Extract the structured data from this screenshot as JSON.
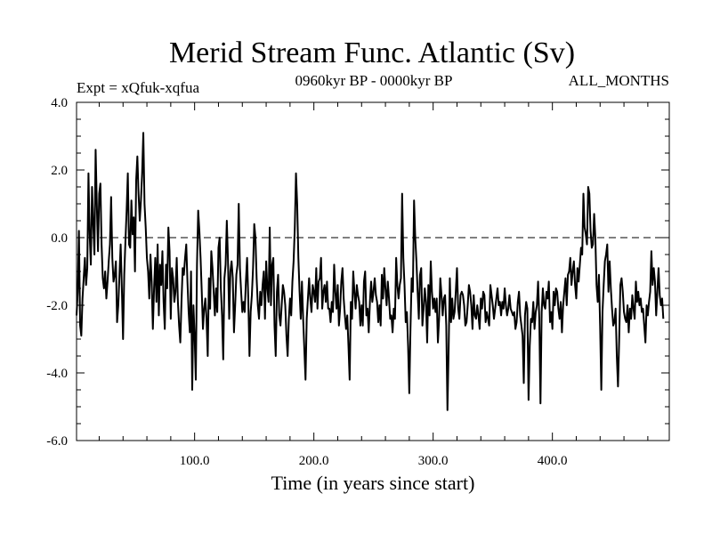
{
  "chart_data": {
    "type": "line",
    "title": "Merid Stream Func. Atlantic (Sv)",
    "subtitle_left": "Expt = xQfuk-xqfua",
    "subtitle_center": "0960kyr BP - 0000kyr BP",
    "subtitle_right": "ALL_MONTHS",
    "xlabel": "Time (in years since start)",
    "ylabel": "",
    "xlim": [
      1,
      498
    ],
    "ylim": [
      -6.0,
      4.0
    ],
    "x_ticks": [
      {
        "value": 100,
        "label": "100.0"
      },
      {
        "value": 200,
        "label": "200.0"
      },
      {
        "value": 300,
        "label": "300.0"
      },
      {
        "value": 400,
        "label": "400.0"
      }
    ],
    "y_ticks": [
      {
        "value": 4,
        "label": "4.0"
      },
      {
        "value": 2,
        "label": "2.0"
      },
      {
        "value": 0,
        "label": "0.0"
      },
      {
        "value": -2,
        "label": "-2.0"
      },
      {
        "value": -4,
        "label": "-4.0"
      },
      {
        "value": -6,
        "label": "-6.0"
      }
    ],
    "reference_line": 0.0,
    "x_start": 1,
    "x_step": 1,
    "series": [
      {
        "name": "xQfuk-xqfua",
        "values": [
          -2.3,
          -1.6,
          0.2,
          -2.6,
          -2.9,
          -1.8,
          -1.2,
          -0.6,
          -1.4,
          -0.9,
          1.9,
          0.1,
          -0.8,
          1.5,
          0.4,
          -0.5,
          2.6,
          1.0,
          -0.4,
          1.3,
          1.6,
          -0.2,
          -1.2,
          -1.5,
          -1.0,
          -1.8,
          -1.3,
          -0.7,
          -0.2,
          1.2,
          -0.6,
          -1.3,
          -1.1,
          -0.7,
          -2.5,
          -2.0,
          -1.1,
          -0.2,
          -1.5,
          -3.0,
          -1.1,
          -0.1,
          0.8,
          1.9,
          -0.2,
          -0.3,
          1.1,
          0.1,
          0.6,
          -1.0,
          1.7,
          2.4,
          1.3,
          0.5,
          1.1,
          1.9,
          3.1,
          1.0,
          0.3,
          -0.6,
          -1.0,
          -1.8,
          -0.5,
          -1.3,
          -2.7,
          -1.5,
          -0.6,
          -1.9,
          -0.2,
          -2.3,
          -0.8,
          -1.4,
          -0.4,
          -1.9,
          -2.7,
          -0.8,
          -1.5,
          0.3,
          -0.4,
          -2.4,
          -0.9,
          -1.2,
          -1.9,
          -1.6,
          -0.6,
          -1.9,
          -2.6,
          -3.1,
          -1.9,
          -0.9,
          -1.1,
          -0.6,
          -0.2,
          -1.3,
          -2.2,
          -2.8,
          -1.0,
          -4.5,
          -2.0,
          -2.9,
          -4.2,
          -0.8,
          0.8,
          0.2,
          -0.6,
          -1.6,
          -2.7,
          -2.1,
          -1.8,
          -2.4,
          -3.5,
          -1.2,
          -2.1,
          -0.4,
          -0.9,
          -1.6,
          -2.3,
          -1.5,
          -2.2,
          -0.3,
          0.0,
          -1.5,
          -2.3,
          -3.6,
          -1.2,
          -0.8,
          0.5,
          -0.7,
          -2.4,
          -1.0,
          -0.7,
          -1.2,
          -2.8,
          -2.0,
          -1.1,
          -0.8,
          1.0,
          -0.9,
          -1.6,
          -2.2,
          -1.9,
          -2.2,
          -1.3,
          -0.6,
          -1.8,
          -3.5,
          -2.2,
          -1.7,
          -0.9,
          0.4,
          0.0,
          -1.2,
          -2.0,
          -2.4,
          -1.6,
          -2.0,
          -1.4,
          -1.0,
          -2.4,
          -0.7,
          -1.5,
          -1.9,
          0.3,
          -2.0,
          -0.8,
          -0.6,
          -2.6,
          -3.5,
          -1.6,
          -1.1,
          -2.3,
          -2.6,
          -2.0,
          -1.4,
          -1.6,
          -2.0,
          -2.9,
          -3.5,
          -2.4,
          -1.8,
          -2.3,
          -1.3,
          -0.7,
          0.3,
          1.9,
          1.0,
          -0.6,
          -1.6,
          -2.4,
          -1.3,
          -2.4,
          -3.3,
          -4.2,
          -2.4,
          -1.8,
          -1.2,
          -1.8,
          -2.2,
          -1.4,
          -1.6,
          -1.9,
          -0.9,
          -2.1,
          -1.3,
          -1.2,
          -0.6,
          -2.1,
          -1.6,
          -1.4,
          -1.9,
          -1.3,
          -2.1,
          -2.1,
          -2.5,
          -1.9,
          -2.2,
          -0.8,
          -1.6,
          -2.1,
          -1.4,
          -2.6,
          -2.1,
          -1.3,
          -0.9,
          -1.8,
          -2.3,
          -2.7,
          -2.3,
          -3.2,
          -4.2,
          -1.9,
          -2.4,
          -1.0,
          -1.6,
          -2.1,
          -1.4,
          -1.7,
          -1.9,
          -2.6,
          -2.0,
          -2.6,
          -1.3,
          -1.0,
          -2.3,
          -2.1,
          -2.8,
          -1.9,
          -1.3,
          -1.9,
          -1.6,
          -1.2,
          -1.7,
          -1.9,
          -2.5,
          -2.0,
          -2.6,
          -1.1,
          -1.8,
          -0.9,
          -1.5,
          -2.0,
          -1.3,
          -1.8,
          -2.4,
          -2.3,
          -2.8,
          -2.1,
          -2.4,
          -0.6,
          -1.4,
          -1.8,
          -1.4,
          -1.2,
          1.3,
          -0.6,
          -1.4,
          -2.5,
          -2.2,
          -3.2,
          -4.6,
          -2.7,
          -1.2,
          -1.6,
          1.1,
          0.0,
          -0.7,
          -1.6,
          -2.4,
          -1.1,
          -0.9,
          -2.6,
          -2.1,
          -1.5,
          -1.9,
          -3.1,
          -1.4,
          -2.3,
          -0.7,
          -1.6,
          -2.1,
          -1.8,
          -2.2,
          -1.8,
          -3.1,
          -2.4,
          -1.2,
          -1.7,
          -2.3,
          -1.8,
          -1.7,
          -2.6,
          -5.1,
          -3.3,
          -1.2,
          -2.5,
          -1.8,
          -2.4,
          -2.2,
          -1.6,
          -0.9,
          -2.1,
          -2.4,
          -1.7,
          -1.6,
          -1.7,
          -2.0,
          -2.6,
          -2.5,
          -2.0,
          -1.4,
          -1.6,
          -2.0,
          -2.7,
          -1.7,
          -2.3,
          -2.4,
          -2.0,
          -2.3,
          -2.7,
          -1.8,
          -2.1,
          -1.6,
          -1.7,
          -2.5,
          -2.2,
          -2.4,
          -2.6,
          -1.4,
          -1.7,
          -2.0,
          -2.4,
          -2.1,
          -1.8,
          -1.5,
          -2.0,
          -1.9,
          -2.3,
          -1.9,
          -2.1,
          -1.5,
          -2.0,
          -2.3,
          -2.1,
          -1.7,
          -2.1,
          -2.2,
          -2.3,
          -2.2,
          -2.7,
          -2.5,
          -1.9,
          -1.6,
          -2.3,
          -2.6,
          -2.9,
          -4.3,
          -2.3,
          -1.9,
          -2.1,
          -4.8,
          -3.2,
          -2.4,
          -2.5,
          -1.9,
          -2.7,
          -2.2,
          -2.0,
          -1.3,
          -2.4,
          -4.9,
          -2.2,
          -1.5,
          -2.0,
          -2.1,
          -1.6,
          -1.8,
          -1.3,
          -2.5,
          -2.2,
          -2.7,
          -1.6,
          -2.0,
          -1.5,
          -1.6,
          -2.1,
          -2.4,
          -1.9,
          -2.8,
          -2.0,
          -1.6,
          -1.2,
          -2.0,
          -1.1,
          -1.0,
          -0.6,
          -1.4,
          -1.0,
          -0.7,
          -1.4,
          -1.8,
          -0.9,
          -1.3,
          -0.8,
          -0.3,
          -0.5,
          1.3,
          0.3,
          0.1,
          -0.2,
          1.5,
          1.3,
          0.2,
          -0.3,
          -0.2,
          0.7,
          0.0,
          -1.4,
          -1.9,
          -1.1,
          -2.6,
          -4.5,
          -2.2,
          -1.4,
          -0.7,
          -0.5,
          -0.2,
          -1.6,
          -0.7,
          -1.5,
          -2.1,
          -2.6,
          -2.5,
          -2.1,
          -3.5,
          -4.4,
          -3.0,
          -1.4,
          -1.2,
          -1.6,
          -2.2,
          -2.4,
          -2.5,
          -2.0,
          -2.8,
          -2.1,
          -2.4,
          -1.7,
          -2.1,
          -2.4,
          -1.3,
          -1.9,
          -1.6,
          -2.0,
          -1.8,
          -2.2,
          -2.1,
          -2.6,
          -3.1,
          -2.0,
          -2.3,
          -1.9,
          -1.6,
          -0.4,
          -1.4,
          -0.9,
          -1.3,
          -2.3,
          -1.6,
          -0.9,
          -1.7,
          -2.0,
          -1.8,
          -2.4
        ]
      }
    ]
  }
}
